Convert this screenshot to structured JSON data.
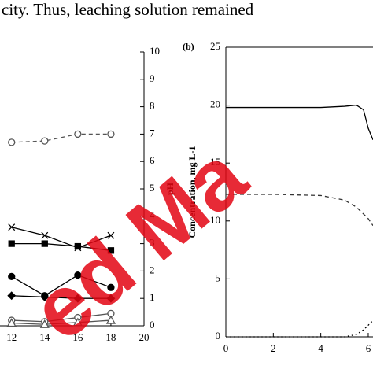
{
  "caption_fragment": "city. Thus, leaching solution remained",
  "watermark": "ed Ma",
  "chart_data": [
    {
      "type": "line",
      "y_label": "pH",
      "y_axis_side": "right",
      "x": [
        12,
        14,
        16,
        18
      ],
      "xlim": [
        11.3,
        20
      ],
      "xticks": [
        12,
        14,
        16,
        18,
        20
      ],
      "ylim": [
        0,
        10
      ],
      "yticks": [
        0,
        1,
        2,
        3,
        4,
        5,
        6,
        7,
        8,
        9,
        10
      ],
      "series": [
        {
          "color": "#555555",
          "marker": "circle-open",
          "dash": "dashed",
          "values": [
            6.7,
            6.75,
            7.0,
            7.0
          ]
        },
        {
          "color": "#000000",
          "marker": "cross",
          "dash": "solid",
          "values": [
            3.6,
            3.3,
            2.85,
            3.3
          ]
        },
        {
          "color": "#000000",
          "marker": "square",
          "dash": "solid",
          "values": [
            3.0,
            3.0,
            2.9,
            2.75
          ]
        },
        {
          "color": "#000000",
          "marker": "circle",
          "dash": "solid",
          "values": [
            1.8,
            1.1,
            1.85,
            1.4
          ]
        },
        {
          "color": "#000000",
          "marker": "diamond",
          "dash": "solid",
          "values": [
            1.1,
            1.05,
            1.0,
            1.0
          ]
        },
        {
          "color": "#555555",
          "marker": "circle-open",
          "dash": "solid",
          "values": [
            0.2,
            0.15,
            0.3,
            0.45
          ]
        },
        {
          "color": "#555555",
          "marker": "triangle-open",
          "dash": "solid",
          "values": [
            0.1,
            0.05,
            0.12,
            0.2
          ]
        }
      ]
    },
    {
      "type": "line",
      "panel_label": "(b)",
      "y_label": "Concentration, mg L-1",
      "xlim": [
        0,
        6.2
      ],
      "xticks": [
        0,
        2,
        4,
        6
      ],
      "ylim": [
        0,
        25
      ],
      "yticks": [
        0,
        5,
        10,
        15,
        20,
        25
      ],
      "series": [
        {
          "color": "#000000",
          "dash": "solid",
          "x": [
            0,
            1,
            2,
            3,
            4,
            5,
            5.5,
            5.8,
            6,
            6.2
          ],
          "values": [
            19.8,
            19.8,
            19.8,
            19.8,
            19.8,
            19.9,
            20.0,
            19.6,
            18.0,
            17.0
          ]
        },
        {
          "color": "#333333",
          "dash": "dashed",
          "x": [
            0,
            2,
            4,
            5,
            5.5,
            6,
            6.2
          ],
          "values": [
            12.3,
            12.3,
            12.2,
            11.8,
            11.2,
            10.2,
            9.6
          ]
        },
        {
          "color": "#000000",
          "dash": "dotted",
          "x": [
            0,
            5,
            5.5,
            5.8,
            6,
            6.2
          ],
          "values": [
            0,
            0,
            0.2,
            0.6,
            1.0,
            1.4
          ]
        }
      ]
    }
  ]
}
